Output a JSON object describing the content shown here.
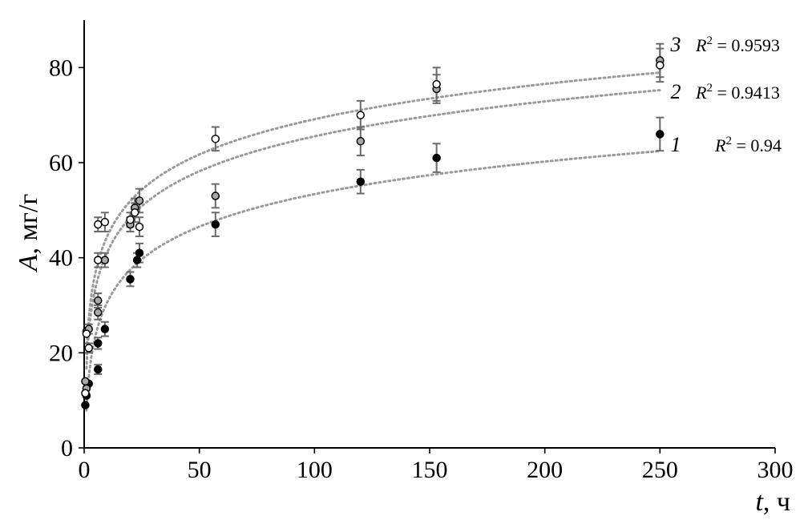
{
  "chart_data": {
    "type": "scatter",
    "xlabel_var": "t",
    "xlabel_unit": ", ч",
    "ylabel_var": "A",
    "ylabel_unit": ", мг/г",
    "xlim": [
      0,
      300
    ],
    "ylim": [
      0,
      90
    ],
    "xticks": [
      0,
      50,
      100,
      150,
      200,
      250,
      300
    ],
    "yticks": [
      0,
      20,
      40,
      60,
      80
    ],
    "grid": false,
    "series": [
      {
        "label": "1",
        "r2_text": "R",
        "r2_sup": "2",
        "r2_value": " = 0.94",
        "marker_fill": "#000000",
        "trend_color": "#9a9a9a",
        "trend": {
          "a": 10.0,
          "b": 0.0,
          "c": 1.0,
          "x_min": 1,
          "x_max": 250
        },
        "points": [
          {
            "x": 0.5,
            "y": 9,
            "err": 0
          },
          {
            "x": 1,
            "y": 11,
            "err": 0
          },
          {
            "x": 2,
            "y": 13.5,
            "err": 0
          },
          {
            "x": 6,
            "y": 16.5,
            "err": 1
          },
          {
            "x": 6,
            "y": 22,
            "err": 1.2
          },
          {
            "x": 9,
            "y": 25,
            "err": 1.5
          },
          {
            "x": 20,
            "y": 35.5,
            "err": 1.5
          },
          {
            "x": 23,
            "y": 39.5,
            "err": 1.5
          },
          {
            "x": 24,
            "y": 41,
            "err": 2
          },
          {
            "x": 57,
            "y": 47,
            "err": 2.5
          },
          {
            "x": 120,
            "y": 56,
            "err": 2.5
          },
          {
            "x": 153,
            "y": 61,
            "err": 3
          },
          {
            "x": 250,
            "y": 66,
            "err": 3.5
          }
        ]
      },
      {
        "label": "2",
        "r2_text": "R",
        "r2_sup": "2",
        "r2_value": " = 0.9413",
        "marker_fill": "#a8a8a8",
        "trend_color": "#9a9a9a",
        "trend": {
          "a": 11.5,
          "b": 0.0,
          "c": 1.0,
          "x_min": 1,
          "x_max": 250
        },
        "points": [
          {
            "x": 0.5,
            "y": 14,
            "err": 0
          },
          {
            "x": 1,
            "y": 12.5,
            "err": 0
          },
          {
            "x": 1,
            "y": 24.5,
            "err": 0
          },
          {
            "x": 2,
            "y": 25,
            "err": 1
          },
          {
            "x": 6,
            "y": 31,
            "err": 1.5
          },
          {
            "x": 6,
            "y": 28.5,
            "err": 1.5
          },
          {
            "x": 9,
            "y": 39.5,
            "err": 1.5
          },
          {
            "x": 20,
            "y": 47,
            "err": 1.5
          },
          {
            "x": 22,
            "y": 50.5,
            "err": 2
          },
          {
            "x": 24,
            "y": 52,
            "err": 2.5
          },
          {
            "x": 57,
            "y": 53,
            "err": 2.5
          },
          {
            "x": 120,
            "y": 64.5,
            "err": 3
          },
          {
            "x": 153,
            "y": 75.5,
            "err": 3
          },
          {
            "x": 250,
            "y": 81.5,
            "err": 3.5
          }
        ]
      },
      {
        "label": "3",
        "r2_text": "R",
        "r2_sup": "2",
        "r2_value": " = 0.9593",
        "marker_fill": "#ffffff",
        "trend_color": "#9a9a9a",
        "trend": {
          "a": 12.0,
          "b": 0.0,
          "c": 1.0,
          "x_min": 1,
          "x_max": 250
        },
        "points": [
          {
            "x": 0.5,
            "y": 11.5,
            "err": 0
          },
          {
            "x": 1,
            "y": 24,
            "err": 0
          },
          {
            "x": 2,
            "y": 21,
            "err": 1
          },
          {
            "x": 6,
            "y": 39.5,
            "err": 1.5
          },
          {
            "x": 6,
            "y": 47,
            "err": 1.5
          },
          {
            "x": 9,
            "y": 47.5,
            "err": 2
          },
          {
            "x": 20,
            "y": 48,
            "err": 1.5
          },
          {
            "x": 22,
            "y": 49.5,
            "err": 2
          },
          {
            "x": 24,
            "y": 46.5,
            "err": 2
          },
          {
            "x": 57,
            "y": 65,
            "err": 2.5
          },
          {
            "x": 120,
            "y": 70,
            "err": 3
          },
          {
            "x": 153,
            "y": 76.5,
            "err": 3.5
          },
          {
            "x": 250,
            "y": 80.5,
            "err": 3.5
          }
        ]
      }
    ]
  }
}
